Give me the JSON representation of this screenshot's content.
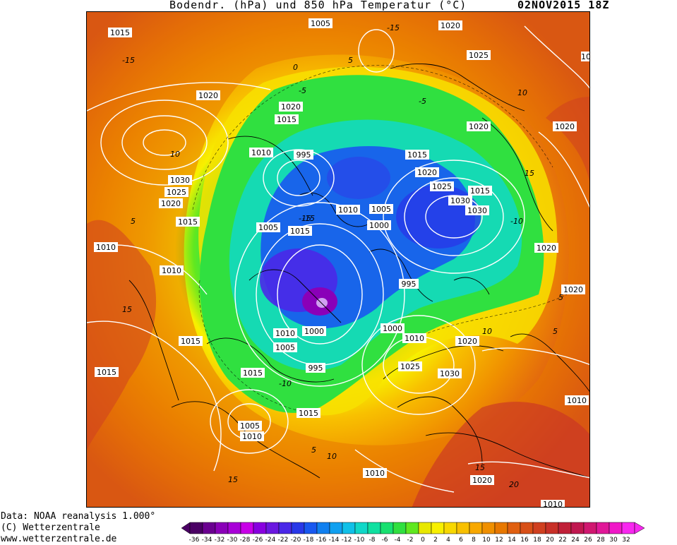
{
  "title": {
    "main": "Bodendr. (hPa)  und 850 hPa Temperatur (°C)",
    "date": "02NOV2015 18Z"
  },
  "footer": {
    "line1": "Data: NOAA reanalysis 1.000°",
    "line2": "(C) Wetterzentrale",
    "line3": "www.wetterzentrale.de"
  },
  "legend": {
    "ticks": [
      "-36",
      "-34",
      "-32",
      "-30",
      "-28",
      "-26",
      "-24",
      "-22",
      "-20",
      "-18",
      "-16",
      "-14",
      "-12",
      "-10",
      "-8",
      "-6",
      "-4",
      "-2",
      "0",
      "2",
      "4",
      "6",
      "8",
      "10",
      "12",
      "14",
      "16",
      "18",
      "20",
      "22",
      "24",
      "26",
      "28",
      "30",
      "32"
    ],
    "colors": [
      "#4a0064",
      "#6a0090",
      "#8a00b8",
      "#a800d8",
      "#c800e8",
      "#8800e0",
      "#6a18e0",
      "#4a28e8",
      "#2838e8",
      "#1858f0",
      "#1080f0",
      "#10a0f0",
      "#10c0e8",
      "#10d8c8",
      "#10e0a0",
      "#18e070",
      "#30e040",
      "#60e820",
      "#e8e800",
      "#f8f000",
      "#f8d800",
      "#f8c000",
      "#f8a800",
      "#f09000",
      "#e87800",
      "#e06010",
      "#d85018",
      "#d04020",
      "#c83028",
      "#c02038",
      "#c01850",
      "#d01870",
      "#e01898",
      "#f018c8",
      "#f828f0"
    ]
  },
  "map": {
    "isobar_labels": [
      {
        "text": "1015"
      },
      {
        "text": "1005"
      },
      {
        "text": "1020"
      },
      {
        "text": "1025"
      },
      {
        "text": "10"
      },
      {
        "text": "1020"
      },
      {
        "text": "1020"
      },
      {
        "text": "1015"
      },
      {
        "text": "1020"
      },
      {
        "text": "1020"
      },
      {
        "text": "1010"
      },
      {
        "text": "995"
      },
      {
        "text": "1015"
      },
      {
        "text": "1030"
      },
      {
        "text": "1025"
      },
      {
        "text": "1020"
      },
      {
        "text": "1020"
      },
      {
        "text": "1025"
      },
      {
        "text": "1015"
      },
      {
        "text": "1030"
      },
      {
        "text": "1030"
      },
      {
        "text": "1015"
      },
      {
        "text": "1010"
      },
      {
        "text": "1005"
      },
      {
        "text": "1005"
      },
      {
        "text": "1015"
      },
      {
        "text": "1000"
      },
      {
        "text": "1010"
      },
      {
        "text": "1010"
      },
      {
        "text": "1020"
      },
      {
        "text": "995"
      },
      {
        "text": "1020"
      },
      {
        "text": "1010"
      },
      {
        "text": "1000"
      },
      {
        "text": "1000"
      },
      {
        "text": "1010"
      },
      {
        "text": "1015"
      },
      {
        "text": "1005"
      },
      {
        "text": "1020"
      },
      {
        "text": "1015"
      },
      {
        "text": "995"
      },
      {
        "text": "1025"
      },
      {
        "text": "1030"
      },
      {
        "text": "1015"
      },
      {
        "text": "1015"
      },
      {
        "text": "1005"
      },
      {
        "text": "1010"
      },
      {
        "text": "1010"
      },
      {
        "text": "1010"
      },
      {
        "text": "1020"
      },
      {
        "text": "1010"
      }
    ],
    "temp_labels": [
      {
        "text": "-15"
      },
      {
        "text": "-15"
      },
      {
        "text": "10"
      },
      {
        "text": "0"
      },
      {
        "text": "-5"
      },
      {
        "text": "5"
      },
      {
        "text": "-5"
      },
      {
        "text": "10"
      },
      {
        "text": "15"
      },
      {
        "text": "-15"
      },
      {
        "text": "5"
      },
      {
        "text": "-10"
      },
      {
        "text": "5"
      },
      {
        "text": "15"
      },
      {
        "text": "-10"
      },
      {
        "text": "10"
      },
      {
        "text": "5"
      },
      {
        "text": "15"
      },
      {
        "text": "10"
      },
      {
        "text": "20"
      },
      {
        "text": "15"
      },
      {
        "text": "5"
      },
      {
        "text": "-15"
      }
    ]
  }
}
